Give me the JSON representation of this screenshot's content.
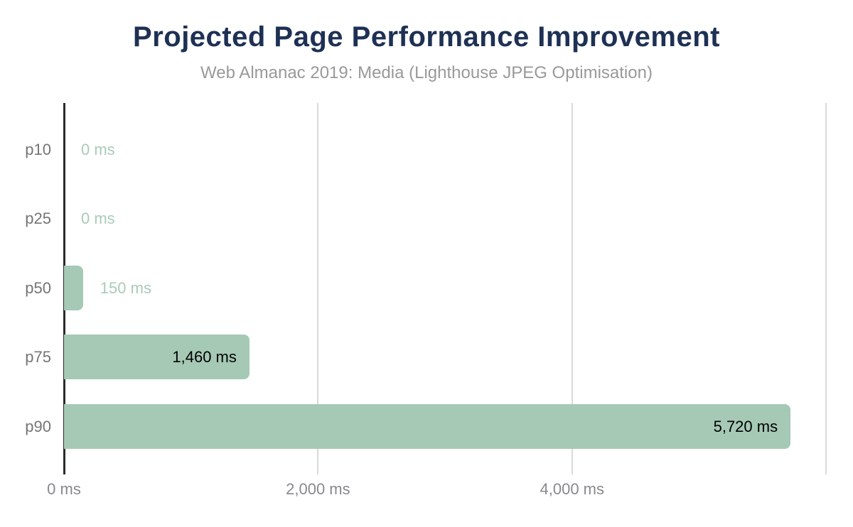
{
  "chart_data": {
    "type": "bar",
    "orientation": "horizontal",
    "title": "Projected Page Performance Improvement",
    "subtitle": "Web Almanac 2019: Media (Lighthouse JPEG Optimisation)",
    "categories": [
      "p10",
      "p25",
      "p50",
      "p75",
      "p90"
    ],
    "values": [
      0,
      0,
      150,
      1460,
      5720
    ],
    "value_labels": [
      "0 ms",
      "0 ms",
      "150 ms",
      "1,460 ms",
      "5,720 ms"
    ],
    "value_label_placement": [
      "outside",
      "outside",
      "outside",
      "inside",
      "inside"
    ],
    "unit": "ms",
    "xlabel": "",
    "ylabel": "",
    "xlim": [
      0,
      6044
    ],
    "x_ticks": [
      {
        "value": 0,
        "label": "0 ms"
      },
      {
        "value": 2000,
        "label": "2,000 ms"
      },
      {
        "value": 4000,
        "label": "4,000 ms"
      },
      {
        "value": 6000,
        "label": ""
      }
    ],
    "grid": "vertical-gridlines",
    "legend": "none",
    "colors": {
      "bar": "#a5c9b5",
      "outside_value_label": "#a9cbb9",
      "inside_value_label": "#000000",
      "title": "#1e3154",
      "subtitle": "#999999",
      "category_label": "#757575",
      "tick_label": "#87898c",
      "gridline": "#d9d9d9",
      "axis_line": "#2b2b2b",
      "background": "#ffffff"
    }
  }
}
